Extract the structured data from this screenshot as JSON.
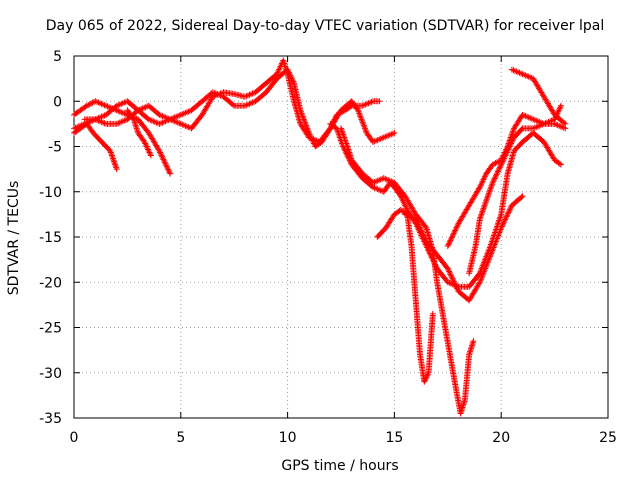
{
  "chart_data": {
    "type": "scatter",
    "title": "Day 065 of 2022, Sidereal Day-to-day VTEC variation (SDTVAR) for receiver lpal",
    "xlabel": "GPS time / hours",
    "ylabel": "SDTVAR / TECUs",
    "xlim": [
      0,
      25
    ],
    "ylim": [
      -35,
      5
    ],
    "xticks": [
      0,
      5,
      10,
      15,
      20,
      25
    ],
    "yticks": [
      5,
      0,
      -5,
      -10,
      -15,
      -20,
      -25,
      -30,
      -35
    ],
    "grid": true,
    "marker": "+",
    "color": "#ff0000",
    "series": [
      {
        "points": [
          [
            0.0,
            -3.5
          ],
          [
            0.3,
            -3.0
          ],
          [
            0.6,
            -2.5
          ],
          [
            0.9,
            -3.5
          ],
          [
            1.3,
            -4.5
          ],
          [
            1.7,
            -5.5
          ],
          [
            2.0,
            -7.5
          ]
        ]
      },
      {
        "points": [
          [
            0.0,
            -1.5
          ],
          [
            0.3,
            -1.0
          ],
          [
            0.6,
            -0.5
          ],
          [
            1.0,
            0.0
          ],
          [
            1.5,
            -0.5
          ],
          [
            2.0,
            -1.0
          ],
          [
            2.5,
            -1.5
          ],
          [
            3.0,
            -2.0
          ],
          [
            3.5,
            -3.5
          ],
          [
            4.0,
            -5.5
          ],
          [
            4.5,
            -8.0
          ]
        ]
      },
      {
        "points": [
          [
            0.0,
            -3.0
          ],
          [
            0.5,
            -2.5
          ],
          [
            1.0,
            -2.0
          ],
          [
            1.5,
            -2.5
          ],
          [
            2.0,
            -2.5
          ],
          [
            2.5,
            -2.0
          ],
          [
            3.0,
            -1.0
          ],
          [
            3.5,
            -0.5
          ],
          [
            4.0,
            -1.5
          ],
          [
            4.5,
            -2.0
          ],
          [
            5.0,
            -2.5
          ],
          [
            5.5,
            -3.0
          ],
          [
            6.0,
            -1.5
          ],
          [
            6.5,
            0.5
          ],
          [
            7.0,
            1.0
          ],
          [
            7.5,
            0.8
          ],
          [
            8.0,
            0.5
          ],
          [
            8.5,
            1.0
          ],
          [
            9.0,
            2.0
          ],
          [
            9.5,
            3.0
          ],
          [
            9.8,
            4.5
          ],
          [
            10.0,
            3.0
          ],
          [
            10.3,
            0.0
          ],
          [
            10.6,
            -2.5
          ],
          [
            11.0,
            -4.0
          ],
          [
            11.5,
            -4.5
          ],
          [
            12.0,
            -3.0
          ],
          [
            12.3,
            -1.5
          ],
          [
            12.7,
            -1.0
          ],
          [
            13.0,
            -0.5
          ],
          [
            13.5,
            -0.5
          ],
          [
            14.0,
            0.0
          ],
          [
            14.3,
            0.0
          ]
        ]
      },
      {
        "points": [
          [
            0.5,
            -2.0
          ],
          [
            1.0,
            -2.0
          ],
          [
            1.5,
            -1.5
          ],
          [
            2.0,
            -0.5
          ],
          [
            2.5,
            0.0
          ],
          [
            3.0,
            -1.0
          ],
          [
            3.5,
            -2.0
          ],
          [
            4.0,
            -2.5
          ],
          [
            4.5,
            -2.0
          ],
          [
            5.0,
            -1.5
          ],
          [
            5.5,
            -1.0
          ],
          [
            6.0,
            0.0
          ],
          [
            6.5,
            1.0
          ],
          [
            7.0,
            0.5
          ],
          [
            7.5,
            -0.5
          ],
          [
            8.0,
            -0.5
          ],
          [
            8.5,
            0.0
          ],
          [
            9.0,
            1.0
          ],
          [
            9.5,
            2.5
          ],
          [
            10.0,
            3.5
          ],
          [
            10.3,
            2.0
          ],
          [
            10.6,
            -1.0
          ],
          [
            11.0,
            -3.5
          ],
          [
            11.3,
            -5.0
          ],
          [
            11.6,
            -4.5
          ],
          [
            12.0,
            -3.0
          ],
          [
            12.5,
            -1.0
          ],
          [
            13.0,
            0.0
          ],
          [
            13.3,
            -1.0
          ],
          [
            13.7,
            -3.5
          ],
          [
            14.0,
            -4.5
          ],
          [
            14.5,
            -4.0
          ],
          [
            15.0,
            -3.5
          ]
        ]
      },
      {
        "points": [
          [
            2.5,
            -1.0
          ],
          [
            2.8,
            -2.0
          ],
          [
            3.0,
            -3.5
          ],
          [
            3.3,
            -4.5
          ],
          [
            3.6,
            -6.0
          ]
        ]
      },
      {
        "points": [
          [
            12.0,
            -2.5
          ],
          [
            12.3,
            -3.0
          ],
          [
            12.6,
            -5.0
          ],
          [
            13.0,
            -7.0
          ],
          [
            13.5,
            -8.5
          ],
          [
            14.0,
            -9.5
          ],
          [
            14.5,
            -10.0
          ],
          [
            14.8,
            -9.0
          ],
          [
            15.0,
            -9.5
          ],
          [
            15.3,
            -10.5
          ],
          [
            15.6,
            -12.0
          ],
          [
            16.0,
            -13.5
          ],
          [
            16.3,
            -15.0
          ],
          [
            16.6,
            -16.5
          ],
          [
            17.0,
            -18.5
          ],
          [
            17.5,
            -20.0
          ],
          [
            18.0,
            -20.5
          ],
          [
            18.5,
            -20.5
          ],
          [
            19.0,
            -19.0
          ],
          [
            19.5,
            -16.0
          ],
          [
            20.0,
            -12.5
          ],
          [
            20.3,
            -8.0
          ],
          [
            20.6,
            -5.5
          ],
          [
            21.0,
            -4.5
          ],
          [
            21.5,
            -3.5
          ],
          [
            22.0,
            -4.5
          ],
          [
            22.5,
            -6.5
          ],
          [
            22.8,
            -7.0
          ]
        ]
      },
      {
        "points": [
          [
            14.2,
            -15.0
          ],
          [
            14.6,
            -14.0
          ],
          [
            15.0,
            -12.5
          ],
          [
            15.3,
            -12.0
          ],
          [
            15.6,
            -12.5
          ],
          [
            15.8,
            -16.0
          ],
          [
            16.0,
            -22.0
          ],
          [
            16.2,
            -28.0
          ],
          [
            16.4,
            -31.0
          ],
          [
            16.6,
            -30.0
          ],
          [
            16.8,
            -23.5
          ]
        ]
      },
      {
        "points": [
          [
            12.5,
            -3.0
          ],
          [
            12.8,
            -5.0
          ],
          [
            13.0,
            -6.5
          ],
          [
            13.5,
            -8.0
          ],
          [
            14.0,
            -9.0
          ],
          [
            14.5,
            -8.5
          ],
          [
            15.0,
            -9.0
          ],
          [
            15.5,
            -10.5
          ],
          [
            16.0,
            -12.5
          ],
          [
            16.5,
            -14.0
          ],
          [
            16.8,
            -16.5
          ],
          [
            17.0,
            -20.0
          ],
          [
            17.3,
            -24.0
          ],
          [
            17.6,
            -28.0
          ],
          [
            17.9,
            -32.0
          ],
          [
            18.1,
            -34.5
          ],
          [
            18.3,
            -33.0
          ],
          [
            18.5,
            -28.0
          ],
          [
            18.7,
            -26.5
          ]
        ]
      },
      {
        "points": [
          [
            15.5,
            -12.5
          ],
          [
            16.0,
            -13.0
          ],
          [
            16.5,
            -15.5
          ],
          [
            17.0,
            -17.0
          ],
          [
            17.5,
            -18.5
          ],
          [
            18.0,
            -21.0
          ],
          [
            18.5,
            -22.0
          ],
          [
            19.0,
            -20.0
          ],
          [
            19.5,
            -17.0
          ],
          [
            20.0,
            -14.0
          ],
          [
            20.5,
            -11.5
          ],
          [
            21.0,
            -10.5
          ]
        ]
      },
      {
        "points": [
          [
            17.5,
            -16.0
          ],
          [
            18.0,
            -13.5
          ],
          [
            18.5,
            -11.5
          ],
          [
            19.0,
            -9.5
          ],
          [
            19.3,
            -8.0
          ],
          [
            19.6,
            -7.0
          ],
          [
            20.0,
            -6.5
          ],
          [
            20.3,
            -5.0
          ],
          [
            20.6,
            -3.0
          ],
          [
            21.0,
            -1.5
          ],
          [
            21.5,
            -2.0
          ],
          [
            22.0,
            -2.5
          ],
          [
            22.5,
            -2.0
          ],
          [
            22.8,
            -0.5
          ]
        ]
      },
      {
        "points": [
          [
            18.5,
            -19.0
          ],
          [
            18.8,
            -16.0
          ],
          [
            19.0,
            -13.0
          ],
          [
            19.3,
            -11.0
          ],
          [
            19.6,
            -9.0
          ],
          [
            20.0,
            -7.0
          ],
          [
            20.3,
            -5.5
          ],
          [
            20.6,
            -4.0
          ],
          [
            21.0,
            -3.0
          ],
          [
            21.5,
            -3.0
          ],
          [
            22.0,
            -2.5
          ],
          [
            22.5,
            -2.5
          ],
          [
            23.0,
            -3.0
          ]
        ]
      },
      {
        "points": [
          [
            20.5,
            3.5
          ],
          [
            21.0,
            3.0
          ],
          [
            21.5,
            2.5
          ],
          [
            22.0,
            0.5
          ],
          [
            22.5,
            -1.5
          ],
          [
            23.0,
            -2.5
          ]
        ]
      }
    ]
  }
}
